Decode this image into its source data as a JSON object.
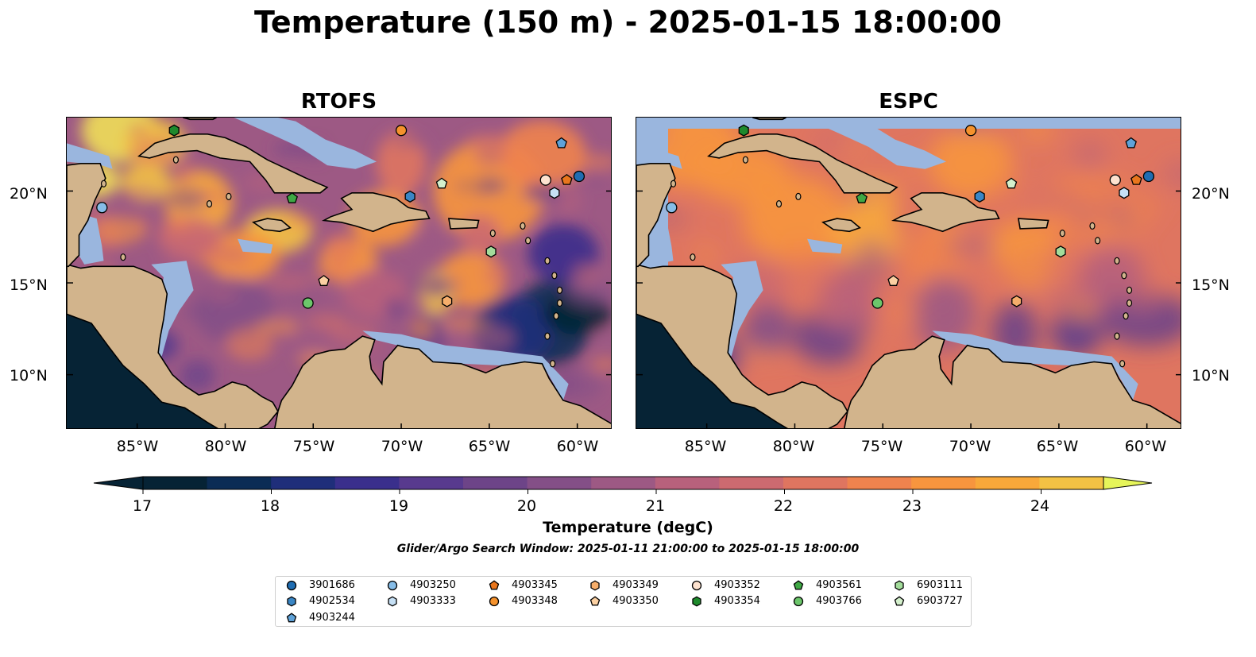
{
  "title": "Temperature (150 m) - 2025-01-15 18:00:00",
  "panels": [
    {
      "title": "RTOFS"
    },
    {
      "title": "ESPC"
    }
  ],
  "axes": {
    "lat_labels": [
      "20°N",
      "15°N",
      "10°N"
    ],
    "lon_labels": [
      "85°W",
      "80°W",
      "75°W",
      "70°W",
      "65°W",
      "60°W"
    ]
  },
  "colorbar": {
    "label": "Temperature (degC)",
    "ticks": [
      "17",
      "18",
      "19",
      "20",
      "21",
      "22",
      "23",
      "24"
    ],
    "range": [
      16.5,
      24.5
    ],
    "colors": [
      "#062335",
      "#0b2c55",
      "#1f2e7a",
      "#3a2f8c",
      "#583a8e",
      "#6d4488",
      "#844f87",
      "#9d5984",
      "#b8617c",
      "#cc6a70",
      "#df7560",
      "#ef834e",
      "#f7953e",
      "#f8a83a",
      "#f3c244",
      "#f0df56"
    ]
  },
  "map": {
    "extent_lon": [
      -89,
      -58
    ],
    "extent_lat": [
      7,
      24
    ],
    "land_color": "#d2b48c",
    "shallow_color": "#9ab6de",
    "deep_pacific_color": "#062335"
  },
  "subtitle": "Glider/Argo Search Window: 2025-01-11 21:00:00 to 2025-01-15 18:00:00",
  "legend": [
    {
      "id": "3901686",
      "marker": "circle",
      "color": "#1f6db2"
    },
    {
      "id": "4902534",
      "marker": "hexagon",
      "color": "#3a86c5"
    },
    {
      "id": "4903244",
      "marker": "pentagon",
      "color": "#5fa2d8"
    },
    {
      "id": "4903250",
      "marker": "circle",
      "color": "#86bde8"
    },
    {
      "id": "4903333",
      "marker": "hexagon",
      "color": "#c6e0f5"
    },
    {
      "id": "4903345",
      "marker": "pentagon",
      "color": "#e8761d"
    },
    {
      "id": "4903348",
      "marker": "circle",
      "color": "#f5922c"
    },
    {
      "id": "4903349",
      "marker": "hexagon",
      "color": "#f6ae6b"
    },
    {
      "id": "4903350",
      "marker": "pentagon",
      "color": "#fbd0a2"
    },
    {
      "id": "4903352",
      "marker": "circle",
      "color": "#fde2cf"
    },
    {
      "id": "4903354",
      "marker": "hexagon",
      "color": "#1e8a2c"
    },
    {
      "id": "4903561",
      "marker": "pentagon",
      "color": "#3fa845"
    },
    {
      "id": "4903766",
      "marker": "circle",
      "color": "#6cc66b"
    },
    {
      "id": "6903111",
      "marker": "hexagon",
      "color": "#a3dc9b"
    },
    {
      "id": "6903727",
      "marker": "pentagon",
      "color": "#d4f0cc"
    }
  ],
  "floats": [
    {
      "id": "3901686",
      "lon": -59.9,
      "lat": 20.8
    },
    {
      "id": "4902534",
      "lon": -69.5,
      "lat": 19.7
    },
    {
      "id": "4903244",
      "lon": -60.9,
      "lat": 22.6
    },
    {
      "id": "4903250",
      "lon": -87.0,
      "lat": 19.1
    },
    {
      "id": "4903333",
      "lon": -61.3,
      "lat": 19.9
    },
    {
      "id": "4903345",
      "lon": -60.6,
      "lat": 20.6
    },
    {
      "id": "4903348",
      "lon": -70.0,
      "lat": 23.3
    },
    {
      "id": "4903349",
      "lon": -67.4,
      "lat": 14.0
    },
    {
      "id": "4903350",
      "lon": -74.4,
      "lat": 15.1
    },
    {
      "id": "4903352",
      "lon": -61.8,
      "lat": 20.6
    },
    {
      "id": "4903354",
      "lon": -82.9,
      "lat": 23.3
    },
    {
      "id": "4903561",
      "lon": -76.2,
      "lat": 19.6
    },
    {
      "id": "4903766",
      "lon": -75.3,
      "lat": 13.9
    },
    {
      "id": "6903111",
      "lon": -64.9,
      "lat": 16.7
    },
    {
      "id": "6903727",
      "lon": -67.7,
      "lat": 20.4
    }
  ]
}
